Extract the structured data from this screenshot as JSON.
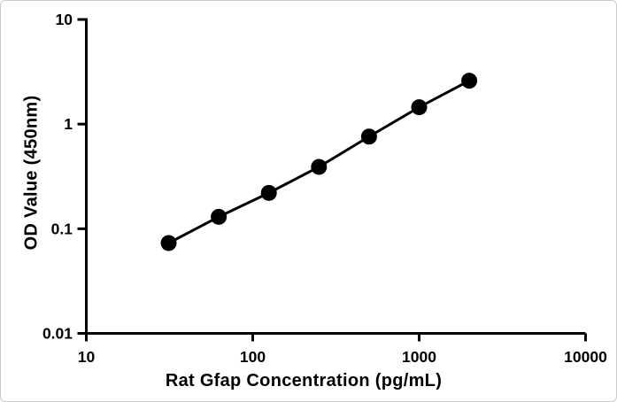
{
  "figure": {
    "background_color": "#ffffff",
    "border_color": "#cbcbcb",
    "foreground_color": "#000000"
  },
  "chart_data": {
    "type": "line",
    "title": "",
    "xlabel": "Rat Gfap Concentration (pg/mL)",
    "ylabel": "OD Value (450nm)",
    "x_scale": "log",
    "y_scale": "log",
    "xlim": [
      10,
      10000
    ],
    "ylim": [
      0.01,
      10
    ],
    "x_tick_values": [
      10,
      100,
      1000,
      10000
    ],
    "x_tick_labels": [
      "10",
      "100",
      "1000",
      "10000"
    ],
    "y_tick_values": [
      10,
      1,
      0.1,
      0.01
    ],
    "y_tick_labels": [
      "10",
      "1",
      "0.1",
      "0.01"
    ],
    "grid": false,
    "legend": false,
    "series": [
      {
        "x": [
          31.25,
          62.5,
          125,
          250,
          500,
          1000,
          2000
        ],
        "y": [
          0.073,
          0.13,
          0.22,
          0.39,
          0.76,
          1.45,
          2.6
        ],
        "marker": "circle",
        "color": "#000000"
      }
    ]
  }
}
